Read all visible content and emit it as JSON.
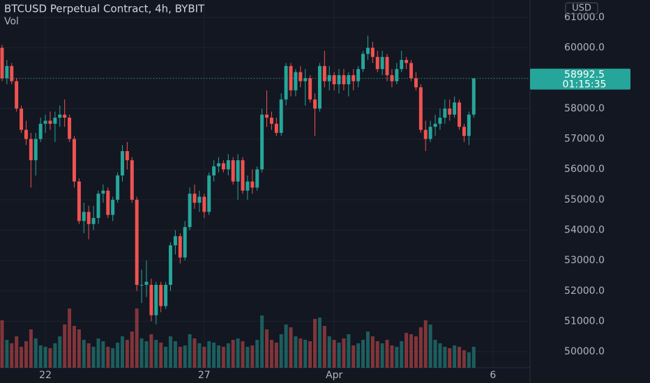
{
  "chart_data": {
    "type": "candlestick",
    "title": "BTCUSD Perpetual Contract, 4h, BYBIT",
    "indicator": "Vol",
    "currency": "USD",
    "countdown": "01:15:35",
    "up_color": "#26a69a",
    "down_color": "#ef5350",
    "xlim": [
      -0.43,
      109.7
    ],
    "xticks": [
      {
        "value": 9,
        "label": "22"
      },
      {
        "value": 42,
        "label": "27"
      },
      {
        "value": 69,
        "label": "Apr"
      },
      {
        "value": 102,
        "label": "6"
      }
    ],
    "ylim": [
      49474,
      61573
    ],
    "yticks": [
      {
        "value": 61000,
        "label": "61000.0"
      },
      {
        "value": 60000,
        "label": "60000.0"
      },
      {
        "value": 59000,
        "label": "59000.0"
      },
      {
        "value": 58000,
        "label": "58000.0"
      },
      {
        "value": 57000,
        "label": "57000.0"
      },
      {
        "value": 56000,
        "label": "56000.0"
      },
      {
        "value": 55000,
        "label": "55000.0"
      },
      {
        "value": 54000,
        "label": "54000.0"
      },
      {
        "value": 53000,
        "label": "53000.0"
      },
      {
        "value": 52000,
        "label": "52000.0"
      },
      {
        "value": 51000,
        "label": "51000.0"
      },
      {
        "value": 50000,
        "label": "50000.0"
      }
    ],
    "grid": true,
    "open": [
      60000,
      59000,
      59400,
      58900,
      58000,
      57300,
      57000,
      56300,
      57000,
      57500,
      57600,
      57500,
      57700,
      57800,
      57700,
      57000,
      55600,
      54300,
      54600,
      54200,
      54400,
      55200,
      55300,
      54500,
      55000,
      55800,
      56600,
      56300,
      55000,
      52200,
      52200,
      52200,
      51200,
      52200,
      51500,
      52200,
      53500,
      53800,
      53100,
      54100,
      55200,
      54900,
      55100,
      54600,
      55800,
      56100,
      56200,
      56000,
      56300,
      55600,
      56300,
      55300,
      55600,
      55400,
      56000,
      57800,
      57700,
      57500,
      57200,
      58300,
      59400,
      58600,
      59200,
      58900,
      59000,
      58300,
      58000,
      59400,
      58900,
      59100,
      58800,
      59100,
      58800,
      59100,
      58900,
      59300,
      59800,
      60000,
      59700,
      59300,
      59700,
      59100,
      58900,
      59300,
      59600,
      59500,
      59000,
      58700,
      57300,
      57000,
      57400,
      57500,
      57700,
      58000,
      57800,
      58200,
      57400,
      57100,
      57800
    ],
    "high": [
      60100,
      59600,
      59500,
      59000,
      58100,
      57600,
      57200,
      57200,
      57700,
      57800,
      57900,
      57900,
      58100,
      58300,
      57800,
      57100,
      55700,
      54900,
      54800,
      54800,
      55300,
      55500,
      55400,
      55100,
      55900,
      56800,
      56900,
      56400,
      55100,
      52700,
      53000,
      52400,
      52300,
      52300,
      52300,
      53600,
      54000,
      53900,
      54300,
      55400,
      55500,
      55300,
      55200,
      55900,
      56300,
      56400,
      56300,
      56500,
      56400,
      56500,
      56400,
      55800,
      56000,
      56100,
      58000,
      58600,
      57900,
      57700,
      58500,
      59500,
      59500,
      59300,
      59400,
      59300,
      59100,
      58500,
      59500,
      59900,
      59400,
      59200,
      59300,
      59300,
      59200,
      59300,
      59400,
      59900,
      60400,
      60200,
      59900,
      59900,
      59800,
      59300,
      59500,
      59900,
      59700,
      59600,
      59200,
      58800,
      57600,
      57600,
      57800,
      58000,
      58300,
      58300,
      58400,
      58300,
      57500,
      57900,
      59000
    ],
    "low": [
      58900,
      58800,
      58800,
      57900,
      57200,
      56800,
      55400,
      55800,
      56900,
      57200,
      57300,
      56900,
      57400,
      57400,
      56900,
      55400,
      54200,
      53900,
      53700,
      54000,
      54200,
      54900,
      54400,
      54300,
      54900,
      55600,
      56000,
      54900,
      52000,
      51600,
      51800,
      51000,
      50900,
      51300,
      51400,
      52000,
      53200,
      52900,
      53000,
      54000,
      54700,
      54600,
      54400,
      54500,
      55600,
      55900,
      55900,
      55800,
      55500,
      55000,
      55200,
      55000,
      55200,
      55300,
      55900,
      57400,
      57300,
      57100,
      57100,
      58100,
      58400,
      58400,
      58700,
      58100,
      58200,
      57100,
      57900,
      58700,
      58600,
      58600,
      58500,
      58600,
      58400,
      58600,
      58700,
      59200,
      59600,
      59500,
      59200,
      59100,
      58900,
      58700,
      58800,
      59200,
      59300,
      58900,
      58600,
      57200,
      56600,
      56900,
      57100,
      57300,
      57500,
      57600,
      57700,
      57300,
      56900,
      56800,
      57700
    ],
    "close": [
      59000,
      59400,
      58900,
      58000,
      57300,
      57000,
      56300,
      57000,
      57500,
      57600,
      57500,
      57700,
      57800,
      57700,
      57000,
      55600,
      54300,
      54600,
      54200,
      54400,
      55200,
      55300,
      54500,
      55000,
      55800,
      56600,
      56300,
      55000,
      52200,
      52200,
      52300,
      51200,
      52200,
      51500,
      52200,
      53500,
      53800,
      53100,
      54100,
      55200,
      54900,
      55100,
      54600,
      55800,
      56100,
      56200,
      56000,
      56300,
      55600,
      56300,
      55300,
      55600,
      55400,
      56000,
      57800,
      57700,
      57500,
      57200,
      58300,
      59400,
      58600,
      59200,
      58900,
      59000,
      58300,
      58000,
      59400,
      58900,
      59100,
      58800,
      59100,
      58800,
      59100,
      58900,
      59300,
      59800,
      60000,
      59700,
      59300,
      59700,
      59100,
      58900,
      59300,
      59600,
      59500,
      59000,
      58700,
      57300,
      57000,
      57400,
      57500,
      57700,
      58000,
      57800,
      58200,
      57400,
      57100,
      57800,
      58992.5
    ],
    "volume": [
      68,
      40,
      35,
      45,
      30,
      38,
      55,
      42,
      32,
      30,
      28,
      35,
      45,
      62,
      85,
      60,
      55,
      40,
      35,
      30,
      42,
      38,
      30,
      28,
      36,
      45,
      40,
      52,
      85,
      42,
      38,
      48,
      40,
      36,
      30,
      45,
      38,
      30,
      32,
      48,
      42,
      35,
      30,
      38,
      36,
      32,
      30,
      35,
      40,
      42,
      38,
      30,
      32,
      40,
      75,
      55,
      40,
      36,
      48,
      62,
      58,
      45,
      42,
      40,
      38,
      70,
      72,
      60,
      45,
      40,
      36,
      42,
      48,
      32,
      35,
      40,
      52,
      45,
      38,
      35,
      40,
      32,
      30,
      38,
      50,
      48,
      45,
      58,
      68,
      62,
      40,
      35,
      30,
      28,
      32,
      30,
      25,
      22,
      30
    ]
  }
}
